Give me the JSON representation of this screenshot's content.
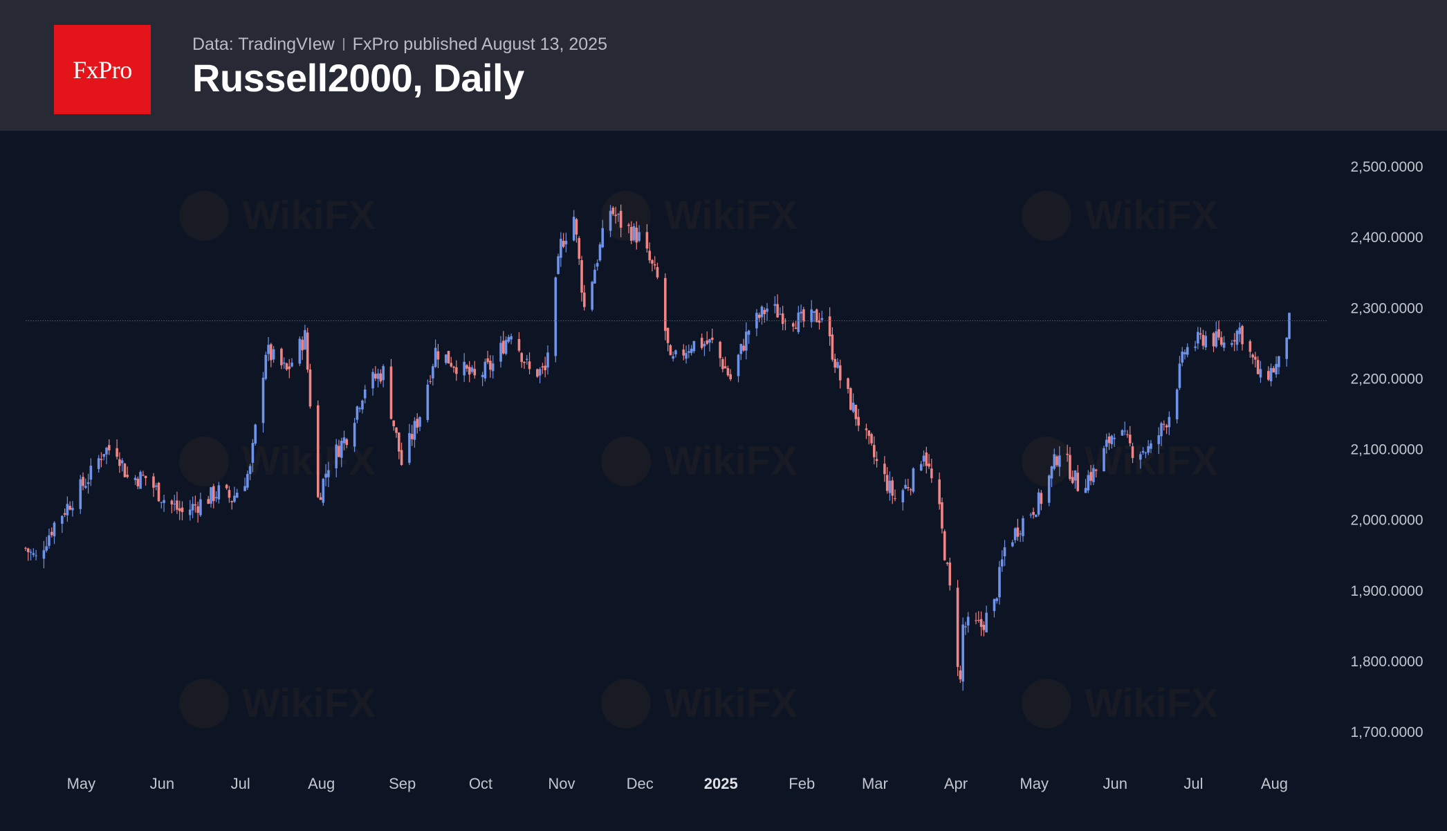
{
  "header": {
    "logo_text": "FxPro",
    "data_source": "Data: TradingVIew",
    "published": "FxPro published August 13, 2025",
    "title": "Russell2000, Daily"
  },
  "watermark": {
    "text": "WikiFX"
  },
  "colors": {
    "background": "#0d1423",
    "header_bg": "#272935",
    "logo_bg": "#e3151a",
    "up_candle": "#6f93e8",
    "down_candle": "#f08585",
    "reference_line": "#4b5f8c"
  },
  "chart_data": {
    "type": "candlestick",
    "title": "Russell2000, Daily",
    "y_axis_position": "right",
    "ylim": [
      1650,
      2530
    ],
    "y_ticks": [
      "2,500.0000",
      "2,400.0000",
      "2,300.0000",
      "2,200.0000",
      "2,100.0000",
      "2,000.0000",
      "1,900.0000",
      "1,800.0000",
      "1,700.0000"
    ],
    "y_tick_values": [
      2500,
      2400,
      2300,
      2200,
      2100,
      2000,
      1900,
      1800,
      1700
    ],
    "x_ticks": [
      {
        "label": "May",
        "date": "2024-05-01"
      },
      {
        "label": "Jun",
        "date": "2024-06-01"
      },
      {
        "label": "Jul",
        "date": "2024-07-01"
      },
      {
        "label": "Aug",
        "date": "2024-08-01"
      },
      {
        "label": "Sep",
        "date": "2024-09-01"
      },
      {
        "label": "Oct",
        "date": "2024-10-01"
      },
      {
        "label": "Nov",
        "date": "2024-11-01"
      },
      {
        "label": "Dec",
        "date": "2024-12-01"
      },
      {
        "label": "2025",
        "date": "2025-01-01",
        "bold": true
      },
      {
        "label": "Feb",
        "date": "2025-02-01"
      },
      {
        "label": "Mar",
        "date": "2025-03-01"
      },
      {
        "label": "Apr",
        "date": "2025-04-01"
      },
      {
        "label": "May",
        "date": "2025-05-01"
      },
      {
        "label": "Jun",
        "date": "2025-06-01"
      },
      {
        "label": "Jul",
        "date": "2025-07-01"
      },
      {
        "label": "Aug",
        "date": "2025-08-01"
      }
    ],
    "date_range": [
      "2024-04-15",
      "2025-08-12"
    ],
    "reference_line": 2282,
    "grid": false,
    "legend": "none",
    "close_anchors": [
      [
        "2024-04-15",
        1960
      ],
      [
        "2024-04-19",
        1945
      ],
      [
        "2024-04-26",
        1995
      ],
      [
        "2024-05-03",
        2030
      ],
      [
        "2024-05-10",
        2065
      ],
      [
        "2024-05-15",
        2100
      ],
      [
        "2024-05-20",
        2100
      ],
      [
        "2024-05-24",
        2060
      ],
      [
        "2024-05-31",
        2060
      ],
      [
        "2024-06-07",
        2030
      ],
      [
        "2024-06-14",
        2010
      ],
      [
        "2024-06-21",
        2025
      ],
      [
        "2024-06-28",
        2040
      ],
      [
        "2024-07-03",
        2030
      ],
      [
        "2024-07-10",
        2070
      ],
      [
        "2024-07-16",
        2240
      ],
      [
        "2024-07-24",
        2210
      ],
      [
        "2024-07-31",
        2260
      ],
      [
        "2024-08-05",
        2030
      ],
      [
        "2024-08-09",
        2080
      ],
      [
        "2024-08-16",
        2120
      ],
      [
        "2024-08-23",
        2190
      ],
      [
        "2024-08-30",
        2210
      ],
      [
        "2024-09-06",
        2080
      ],
      [
        "2024-09-13",
        2150
      ],
      [
        "2024-09-19",
        2240
      ],
      [
        "2024-09-27",
        2220
      ],
      [
        "2024-10-04",
        2200
      ],
      [
        "2024-10-11",
        2220
      ],
      [
        "2024-10-18",
        2270
      ],
      [
        "2024-10-25",
        2210
      ],
      [
        "2024-10-31",
        2210
      ],
      [
        "2024-11-06",
        2390
      ],
      [
        "2024-11-11",
        2430
      ],
      [
        "2024-11-15",
        2300
      ],
      [
        "2024-11-22",
        2400
      ],
      [
        "2024-11-25",
        2440
      ],
      [
        "2024-11-29",
        2420
      ],
      [
        "2024-12-06",
        2400
      ],
      [
        "2024-12-13",
        2340
      ],
      [
        "2024-12-18",
        2220
      ],
      [
        "2024-12-26",
        2250
      ],
      [
        "2025-01-03",
        2250
      ],
      [
        "2025-01-10",
        2200
      ],
      [
        "2025-01-17",
        2270
      ],
      [
        "2025-01-24",
        2300
      ],
      [
        "2025-01-31",
        2290
      ],
      [
        "2025-02-07",
        2280
      ],
      [
        "2025-02-14",
        2290
      ],
      [
        "2025-02-21",
        2200
      ],
      [
        "2025-02-28",
        2140
      ],
      [
        "2025-03-07",
        2080
      ],
      [
        "2025-03-14",
        2030
      ],
      [
        "2025-03-21",
        2060
      ],
      [
        "2025-03-25",
        2100
      ],
      [
        "2025-03-31",
        2010
      ],
      [
        "2025-04-04",
        1900
      ],
      [
        "2025-04-08",
        1770
      ],
      [
        "2025-04-09",
        1850
      ],
      [
        "2025-04-16",
        1850
      ],
      [
        "2025-04-21",
        1880
      ],
      [
        "2025-04-25",
        1960
      ],
      [
        "2025-05-02",
        2000
      ],
      [
        "2025-05-09",
        2030
      ],
      [
        "2025-05-16",
        2100
      ],
      [
        "2025-05-23",
        2050
      ],
      [
        "2025-05-30",
        2070
      ],
      [
        "2025-06-06",
        2130
      ],
      [
        "2025-06-13",
        2100
      ],
      [
        "2025-06-20",
        2100
      ],
      [
        "2025-06-27",
        2150
      ],
      [
        "2025-07-03",
        2240
      ],
      [
        "2025-07-11",
        2260
      ],
      [
        "2025-07-18",
        2250
      ],
      [
        "2025-07-24",
        2270
      ],
      [
        "2025-08-01",
        2200
      ],
      [
        "2025-08-08",
        2220
      ],
      [
        "2025-08-12",
        2280
      ]
    ]
  }
}
